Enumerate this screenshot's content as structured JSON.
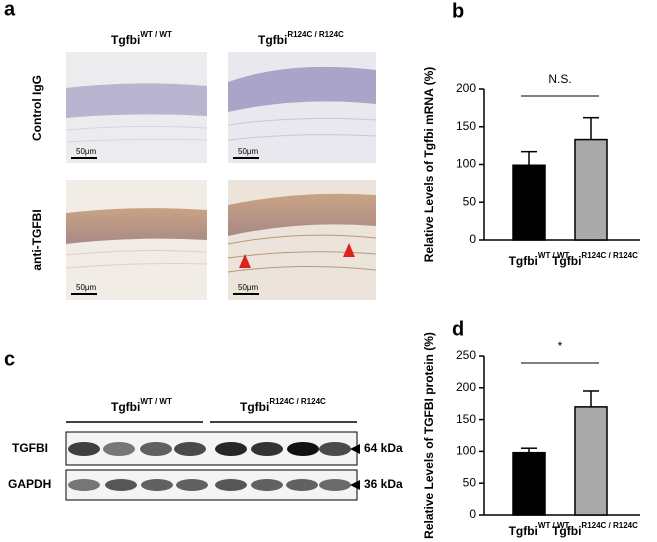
{
  "panels": {
    "a": {
      "label": "a",
      "column_headers": [
        {
          "text": "Tgfbi",
          "sup": "WT / WT"
        },
        {
          "text": "Tgfbi",
          "sup": "R124C / R124C"
        }
      ],
      "row_labels": [
        "Control IgG",
        "anti-TGFBI"
      ],
      "scale_bars": [
        "50μm",
        "50μm",
        "50μm",
        "50μm"
      ]
    },
    "c": {
      "label": "c",
      "column_headers": [
        {
          "text": "Tgfbi",
          "sup": "WT / WT"
        },
        {
          "text": "Tgfbi",
          "sup": "R124C / R124C"
        }
      ],
      "row_labels": [
        "TGFBI",
        "GAPDH"
      ],
      "sizes": [
        "64 kDa",
        "36 kDa"
      ]
    }
  },
  "chart_data": [
    {
      "type": "bar",
      "panel": "b",
      "ylabel": "Relative Levels of Tgfbi mRNA (%)",
      "categories": [
        "Tgfbi",
        "Tgfbi"
      ],
      "category_superscripts": [
        "WT / WT",
        "R124C / R124C"
      ],
      "values": [
        99,
        133
      ],
      "errors": [
        18,
        29
      ],
      "colors": [
        "#000000",
        "#aaaaaa"
      ],
      "ylim": [
        0,
        200
      ],
      "yticks": [
        0,
        50,
        100,
        150,
        200
      ],
      "annotation": "N.S."
    },
    {
      "type": "bar",
      "panel": "d",
      "ylabel": "Relative Levels of TGFBI protein (%)",
      "categories": [
        "Tgfbi",
        "Tgfbi"
      ],
      "category_superscripts": [
        "WT / WT",
        "R124C / R124C"
      ],
      "values": [
        98,
        170
      ],
      "errors": [
        7,
        25
      ],
      "colors": [
        "#000000",
        "#aaaaaa"
      ],
      "ylim": [
        0,
        250
      ],
      "yticks": [
        0,
        50,
        100,
        150,
        200,
        250
      ],
      "annotation": "*"
    }
  ]
}
